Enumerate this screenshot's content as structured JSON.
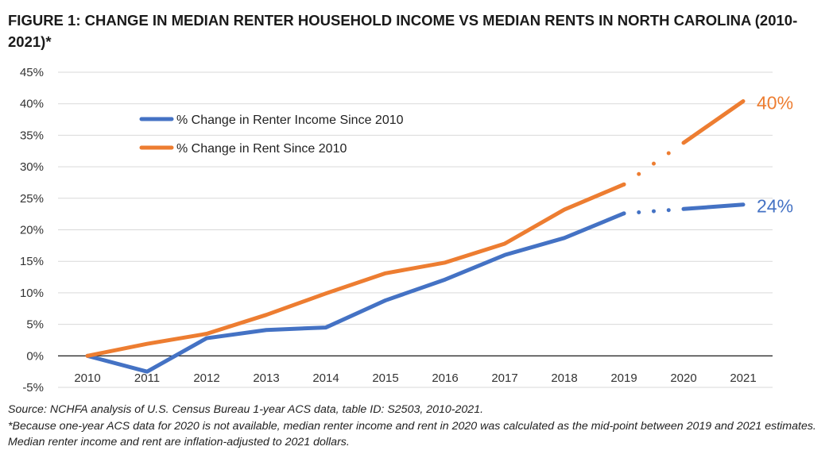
{
  "chart_data": {
    "type": "line",
    "title": "FIGURE 1: CHANGE IN MEDIAN RENTER HOUSEHOLD INCOME VS MEDIAN RENTS IN NORTH CAROLINA (2010-2021)*",
    "categories": [
      "2010",
      "2011",
      "2012",
      "2013",
      "2014",
      "2015",
      "2016",
      "2017",
      "2018",
      "2019",
      "2020",
      "2021"
    ],
    "y_ticks": [
      "45%",
      "40%",
      "35%",
      "30%",
      "25%",
      "20%",
      "15%",
      "10%",
      "5%",
      "0%",
      "-5%"
    ],
    "ylim": [
      -5,
      45
    ],
    "grid": true,
    "legend_position": "top-left",
    "series": [
      {
        "name": "% Change in Renter Income Since 2010",
        "color": "#4472C4",
        "values": [
          0,
          -2.5,
          2.8,
          4.1,
          4.5,
          8.8,
          12.1,
          16.0,
          18.7,
          22.6,
          23.3,
          24.0
        ],
        "end_label": "24%"
      },
      {
        "name": "% Change in Rent Since 2010",
        "color": "#ED7D31",
        "values": [
          0,
          1.9,
          3.5,
          6.5,
          9.9,
          13.1,
          14.8,
          17.8,
          23.2,
          27.2,
          33.8,
          40.4
        ],
        "end_label": "40%"
      }
    ],
    "estimated_category": "2020"
  },
  "notes": {
    "source": "Source: NCHFA analysis of U.S. Census Bureau 1-year ACS data, table ID: S2503, 2010-2021.",
    "footnote": "*Because one-year ACS data for 2020 is not available, median renter income and rent in 2020 was calculated as the mid-point between 2019 and 2021 estimates. Median renter income and rent are inflation-adjusted to 2021 dollars."
  }
}
